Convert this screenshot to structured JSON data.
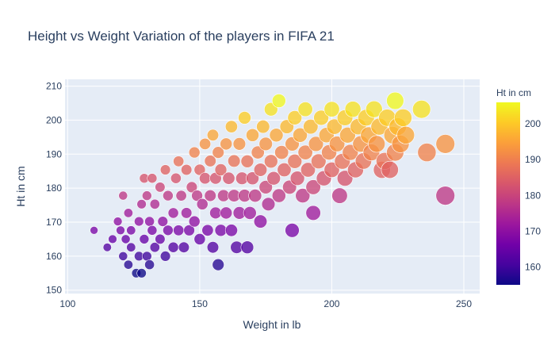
{
  "chart_data": {
    "type": "scatter",
    "title": "Height vs Weight Variation of the players in FIFA 21",
    "xlabel": "Weight in lb",
    "ylabel": "Ht in cm",
    "xlim": [
      99,
      256
    ],
    "ylim": [
      149,
      212
    ],
    "x_ticks": [
      100,
      150,
      200,
      250
    ],
    "y_ticks": [
      150,
      160,
      170,
      180,
      190,
      200,
      210
    ],
    "grid": true,
    "colorbar": {
      "title": "Ht in cm",
      "range": [
        155,
        206
      ],
      "ticks": [
        160,
        170,
        180,
        190,
        200
      ],
      "colorscale": [
        "#0d0887",
        "#46039f",
        "#7201a8",
        "#9c179e",
        "#bd3786",
        "#d8576b",
        "#ed7953",
        "#fb9f3a",
        "#fdca26",
        "#f0f921"
      ]
    },
    "marker_size_encodes": "weight",
    "series": [
      {
        "points": [
          {
            "x": 110,
            "y": 167.6
          },
          {
            "x": 115,
            "y": 162.6
          },
          {
            "x": 117,
            "y": 165
          },
          {
            "x": 119,
            "y": 170.2
          },
          {
            "x": 120,
            "y": 167.6
          },
          {
            "x": 121,
            "y": 177.8
          },
          {
            "x": 121,
            "y": 160
          },
          {
            "x": 122,
            "y": 165
          },
          {
            "x": 123,
            "y": 157.5
          },
          {
            "x": 123,
            "y": 172.7
          },
          {
            "x": 124,
            "y": 162.6
          },
          {
            "x": 124,
            "y": 167.6
          },
          {
            "x": 126,
            "y": 155
          },
          {
            "x": 127,
            "y": 160
          },
          {
            "x": 127,
            "y": 170.2
          },
          {
            "x": 128,
            "y": 155
          },
          {
            "x": 128,
            "y": 175.3
          },
          {
            "x": 129,
            "y": 165
          },
          {
            "x": 129,
            "y": 182.9
          },
          {
            "x": 130,
            "y": 160
          },
          {
            "x": 130,
            "y": 177.8
          },
          {
            "x": 131,
            "y": 157.5
          },
          {
            "x": 131,
            "y": 170.2
          },
          {
            "x": 132,
            "y": 167.6
          },
          {
            "x": 132,
            "y": 182.9
          },
          {
            "x": 133,
            "y": 162.6
          },
          {
            "x": 133,
            "y": 175.3
          },
          {
            "x": 135,
            "y": 165
          },
          {
            "x": 135,
            "y": 180.3
          },
          {
            "x": 136,
            "y": 170.2
          },
          {
            "x": 137,
            "y": 160
          },
          {
            "x": 137,
            "y": 185.4
          },
          {
            "x": 138,
            "y": 167.6
          },
          {
            "x": 138,
            "y": 177.8
          },
          {
            "x": 140,
            "y": 162.6
          },
          {
            "x": 140,
            "y": 172.7
          },
          {
            "x": 141,
            "y": 182.9
          },
          {
            "x": 142,
            "y": 167.6
          },
          {
            "x": 142,
            "y": 187.9
          },
          {
            "x": 143,
            "y": 177.8
          },
          {
            "x": 144,
            "y": 162.6
          },
          {
            "x": 145,
            "y": 172.7
          },
          {
            "x": 145,
            "y": 185.4
          },
          {
            "x": 146,
            "y": 167.6
          },
          {
            "x": 147,
            "y": 180.3
          },
          {
            "x": 148,
            "y": 170.2
          },
          {
            "x": 148,
            "y": 190.5
          },
          {
            "x": 149,
            "y": 177.8
          },
          {
            "x": 150,
            "y": 165
          },
          {
            "x": 150,
            "y": 185.4
          },
          {
            "x": 151,
            "y": 175.3
          },
          {
            "x": 152,
            "y": 182.9
          },
          {
            "x": 152,
            "y": 193
          },
          {
            "x": 153,
            "y": 167.6
          },
          {
            "x": 154,
            "y": 177.8
          },
          {
            "x": 154,
            "y": 188
          },
          {
            "x": 155,
            "y": 162.6
          },
          {
            "x": 155,
            "y": 195.6
          },
          {
            "x": 156,
            "y": 172.7
          },
          {
            "x": 156,
            "y": 182.9
          },
          {
            "x": 157,
            "y": 157.5
          },
          {
            "x": 157,
            "y": 190.5
          },
          {
            "x": 158,
            "y": 167.6
          },
          {
            "x": 158,
            "y": 185.4
          },
          {
            "x": 159,
            "y": 177.8
          },
          {
            "x": 160,
            "y": 172.7
          },
          {
            "x": 160,
            "y": 193
          },
          {
            "x": 161,
            "y": 182.9
          },
          {
            "x": 162,
            "y": 167.6
          },
          {
            "x": 162,
            "y": 198.1
          },
          {
            "x": 163,
            "y": 177.8
          },
          {
            "x": 163,
            "y": 188
          },
          {
            "x": 164,
            "y": 162.6
          },
          {
            "x": 165,
            "y": 172.7
          },
          {
            "x": 165,
            "y": 193
          },
          {
            "x": 166,
            "y": 182.9
          },
          {
            "x": 167,
            "y": 177.8
          },
          {
            "x": 167,
            "y": 200.7
          },
          {
            "x": 168,
            "y": 162.6
          },
          {
            "x": 168,
            "y": 187.9
          },
          {
            "x": 169,
            "y": 172.7
          },
          {
            "x": 170,
            "y": 182.9
          },
          {
            "x": 170,
            "y": 195.6
          },
          {
            "x": 171,
            "y": 177.8
          },
          {
            "x": 172,
            "y": 190.5
          },
          {
            "x": 173,
            "y": 170.2
          },
          {
            "x": 173,
            "y": 185.4
          },
          {
            "x": 174,
            "y": 198.1
          },
          {
            "x": 175,
            "y": 180.3
          },
          {
            "x": 175,
            "y": 193
          },
          {
            "x": 176,
            "y": 175.3
          },
          {
            "x": 177,
            "y": 203.2
          },
          {
            "x": 177,
            "y": 187.9
          },
          {
            "x": 178,
            "y": 182.9
          },
          {
            "x": 179,
            "y": 195.6
          },
          {
            "x": 180,
            "y": 177.8
          },
          {
            "x": 180,
            "y": 205.7
          },
          {
            "x": 181,
            "y": 190.5
          },
          {
            "x": 182,
            "y": 185.4
          },
          {
            "x": 183,
            "y": 198.1
          },
          {
            "x": 184,
            "y": 180.3
          },
          {
            "x": 185,
            "y": 167.6
          },
          {
            "x": 185,
            "y": 193
          },
          {
            "x": 186,
            "y": 187.9
          },
          {
            "x": 186,
            "y": 200.7
          },
          {
            "x": 187,
            "y": 182.9
          },
          {
            "x": 188,
            "y": 195.6
          },
          {
            "x": 189,
            "y": 177.8
          },
          {
            "x": 190,
            "y": 190.5
          },
          {
            "x": 190,
            "y": 203.2
          },
          {
            "x": 191,
            "y": 185.4
          },
          {
            "x": 192,
            "y": 198.1
          },
          {
            "x": 193,
            "y": 180.3
          },
          {
            "x": 193,
            "y": 172.7
          },
          {
            "x": 194,
            "y": 193
          },
          {
            "x": 195,
            "y": 187.9
          },
          {
            "x": 196,
            "y": 200.7
          },
          {
            "x": 197,
            "y": 182.9
          },
          {
            "x": 198,
            "y": 195.6
          },
          {
            "x": 199,
            "y": 190.5
          },
          {
            "x": 200,
            "y": 185.4
          },
          {
            "x": 200,
            "y": 203.2
          },
          {
            "x": 201,
            "y": 198.1
          },
          {
            "x": 202,
            "y": 193
          },
          {
            "x": 203,
            "y": 177.8
          },
          {
            "x": 204,
            "y": 187.9
          },
          {
            "x": 205,
            "y": 200.7
          },
          {
            "x": 205,
            "y": 182.9
          },
          {
            "x": 206,
            "y": 195.6
          },
          {
            "x": 207,
            "y": 190.5
          },
          {
            "x": 208,
            "y": 203.2
          },
          {
            "x": 209,
            "y": 185.4
          },
          {
            "x": 210,
            "y": 198.1
          },
          {
            "x": 211,
            "y": 193
          },
          {
            "x": 212,
            "y": 188
          },
          {
            "x": 213,
            "y": 200.7
          },
          {
            "x": 214,
            "y": 195.6
          },
          {
            "x": 215,
            "y": 190.5
          },
          {
            "x": 216,
            "y": 203.2
          },
          {
            "x": 217,
            "y": 193
          },
          {
            "x": 218,
            "y": 198.1
          },
          {
            "x": 219,
            "y": 185.4
          },
          {
            "x": 220,
            "y": 188
          },
          {
            "x": 221,
            "y": 200.7
          },
          {
            "x": 222,
            "y": 185.4
          },
          {
            "x": 223,
            "y": 195.6
          },
          {
            "x": 224,
            "y": 190.5
          },
          {
            "x": 224,
            "y": 205.7
          },
          {
            "x": 225,
            "y": 198.1
          },
          {
            "x": 226,
            "y": 193
          },
          {
            "x": 227,
            "y": 200.7
          },
          {
            "x": 228,
            "y": 195.6
          },
          {
            "x": 234,
            "y": 203.2
          },
          {
            "x": 236,
            "y": 190.5
          },
          {
            "x": 243,
            "y": 193
          },
          {
            "x": 243,
            "y": 177.8
          }
        ]
      }
    ]
  }
}
